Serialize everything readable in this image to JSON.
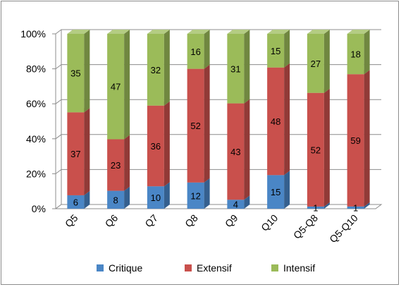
{
  "chart_data": {
    "type": "bar",
    "stacked": true,
    "percent": true,
    "style": "3d",
    "categories": [
      "Q5",
      "Q6",
      "Q7",
      "Q8",
      "Q9",
      "Q10",
      "Q5-Q8",
      "Q5-Q10"
    ],
    "series": [
      {
        "name": "Critique",
        "values": [
          6,
          8,
          10,
          12,
          4,
          15,
          1,
          1
        ],
        "color": "#4a86c6"
      },
      {
        "name": "Extensif",
        "values": [
          37,
          23,
          36,
          52,
          43,
          48,
          52,
          59
        ],
        "color": "#c9504c"
      },
      {
        "name": "Intensif",
        "values": [
          35,
          47,
          32,
          16,
          31,
          15,
          27,
          18
        ],
        "color": "#9bbb59"
      }
    ],
    "yticks": [
      "0%",
      "20%",
      "40%",
      "60%",
      "80%",
      "100%"
    ],
    "ylim": [
      0,
      100
    ],
    "grid": true,
    "legend_position": "bottom"
  }
}
